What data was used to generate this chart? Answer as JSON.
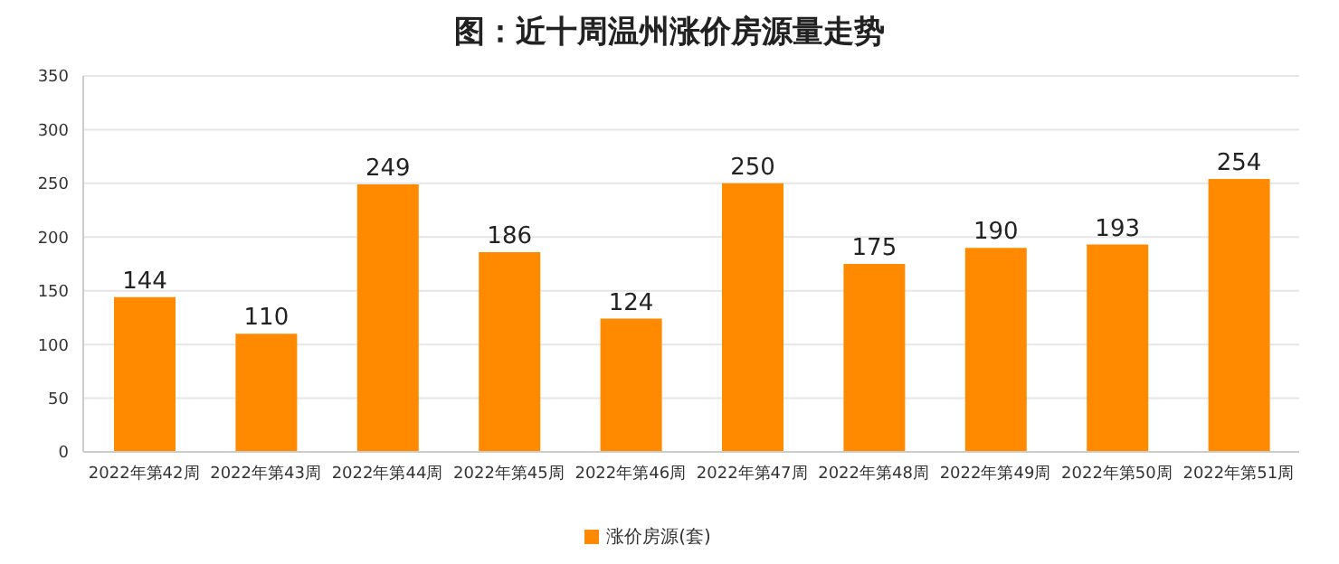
{
  "chart_data": {
    "type": "bar",
    "title": "图：近十周温州涨价房源量走势",
    "categories": [
      "2022年第42周",
      "2022年第43周",
      "2022年第44周",
      "2022年第45周",
      "2022年第46周",
      "2022年第47周",
      "2022年第48周",
      "2022年第49周",
      "2022年第50周",
      "2022年第51周"
    ],
    "series": [
      {
        "name": "涨价房源(套)",
        "color": "#ff8a00",
        "values": [
          144,
          110,
          249,
          186,
          124,
          250,
          175,
          190,
          193,
          254
        ]
      }
    ],
    "ylim": [
      0,
      350
    ],
    "yticks": [
      0,
      50,
      100,
      150,
      200,
      250,
      300,
      350
    ],
    "grid": "y",
    "legend": "bottom",
    "data_labels": true
  }
}
